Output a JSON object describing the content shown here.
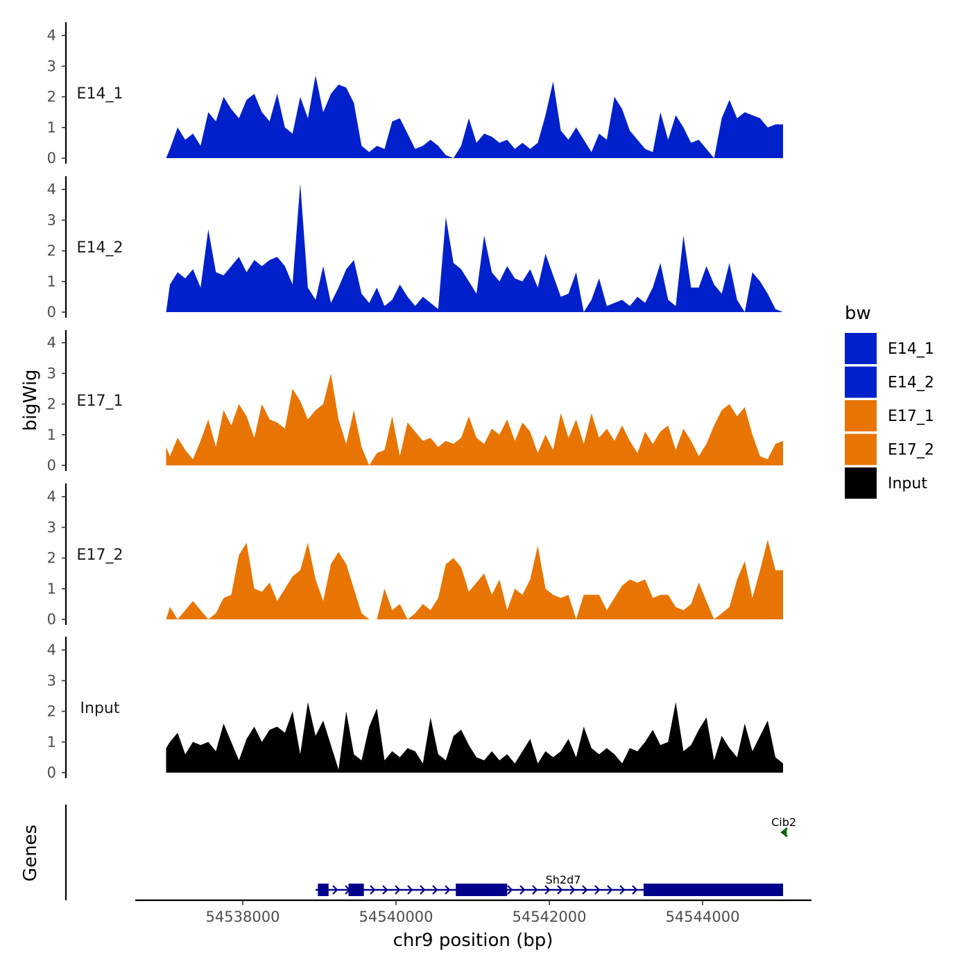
{
  "chart_data": {
    "type": "area",
    "title": "",
    "xlabel": "chr9 position (bp)",
    "ylabel": "bigWig",
    "genes_label": "Genes",
    "xlim": [
      54536600,
      54545500
    ],
    "x_ticks": [
      54538000,
      54540000,
      54542000,
      54544000
    ],
    "x_tick_labels": [
      "54538000",
      "54540000",
      "54542000",
      "54544000"
    ],
    "ylim": [
      0,
      4.4
    ],
    "y_ticks": [
      0,
      1,
      2,
      3,
      4
    ],
    "y_tick_labels": [
      "0",
      "1",
      "2",
      "3",
      "4"
    ],
    "legend": {
      "title": "bw",
      "items": [
        {
          "label": "E14_1",
          "color": "#0020CC"
        },
        {
          "label": "E14_2",
          "color": "#0020CC"
        },
        {
          "label": "E17_1",
          "color": "#E87503"
        },
        {
          "label": "E17_2",
          "color": "#E87503"
        },
        {
          "label": "Input",
          "color": "#000000"
        }
      ]
    },
    "series": [
      {
        "name": "E14_1",
        "color": "#0020CC",
        "x": [
          54537000,
          54537050,
          54537150,
          54537250,
          54537350,
          54537450,
          54537550,
          54537650,
          54537750,
          54537850,
          54537950,
          54538050,
          54538150,
          54538250,
          54538350,
          54538450,
          54538550,
          54538650,
          54538750,
          54538850,
          54538950,
          54539050,
          54539150,
          54539250,
          54539350,
          54539450,
          54539550,
          54539650,
          54539750,
          54539850,
          54539950,
          54540050,
          54540150,
          54540250,
          54540350,
          54540450,
          54540550,
          54540650,
          54540750,
          54540850,
          54540950,
          54541050,
          54541150,
          54541250,
          54541350,
          54541450,
          54541550,
          54541650,
          54541750,
          54541850,
          54541950,
          54542050,
          54542150,
          54542250,
          54542350,
          54542450,
          54542550,
          54542650,
          54542750,
          54542850,
          54542950,
          54543050,
          54543150,
          54543250,
          54543350,
          54543450,
          54543550,
          54543650,
          54543750,
          54543850,
          54543950,
          54544050,
          54544150,
          54544250,
          54544350,
          54544450,
          54544550,
          54544650,
          54544750,
          54544850,
          54544950,
          54545050
        ],
        "y": [
          0,
          0.3,
          1.0,
          0.6,
          0.8,
          0.4,
          1.5,
          1.2,
          2.0,
          1.6,
          1.3,
          1.9,
          2.1,
          1.5,
          1.2,
          2.1,
          1.0,
          0.8,
          2.0,
          1.3,
          2.7,
          1.5,
          2.1,
          2.4,
          2.3,
          1.8,
          0.4,
          0.2,
          0.4,
          0.3,
          1.2,
          1.3,
          0.8,
          0.3,
          0.4,
          0.6,
          0.4,
          0.1,
          0,
          0.4,
          1.3,
          0.5,
          0.8,
          0.7,
          0.5,
          0.6,
          0.3,
          0.5,
          0.3,
          0.5,
          1.4,
          2.5,
          0.9,
          0.6,
          1.0,
          0.6,
          0.2,
          0.8,
          0.6,
          2.0,
          1.6,
          0.9,
          0.6,
          0.3,
          0.2,
          1.5,
          0.6,
          1.4,
          1.0,
          0.5,
          0.6,
          0.3,
          0,
          1.3,
          1.9,
          1.3,
          1.5,
          1.4,
          1.3,
          1.0,
          1.1,
          1.1
        ]
      },
      {
        "name": "E14_2",
        "color": "#0020CC",
        "x": [
          54537000,
          54537050,
          54537150,
          54537250,
          54537350,
          54537450,
          54537550,
          54537650,
          54537750,
          54537850,
          54537950,
          54538050,
          54538150,
          54538250,
          54538350,
          54538450,
          54538550,
          54538650,
          54538750,
          54538850,
          54538950,
          54539050,
          54539150,
          54539250,
          54539350,
          54539450,
          54539550,
          54539650,
          54539750,
          54539850,
          54539950,
          54540050,
          54540150,
          54540250,
          54540350,
          54540450,
          54540550,
          54540650,
          54540750,
          54540850,
          54540950,
          54541050,
          54541150,
          54541250,
          54541350,
          54541450,
          54541550,
          54541650,
          54541750,
          54541850,
          54541950,
          54542050,
          54542150,
          54542250,
          54542350,
          54542450,
          54542550,
          54542650,
          54542750,
          54542850,
          54542950,
          54543050,
          54543150,
          54543250,
          54543350,
          54543450,
          54543550,
          54543650,
          54543750,
          54543850,
          54543950,
          54544050,
          54544150,
          54544250,
          54544350,
          54544450,
          54544550,
          54544650,
          54544750,
          54544850,
          54544950,
          54545050
        ],
        "y": [
          0,
          0.9,
          1.3,
          1.1,
          1.4,
          0.8,
          2.7,
          1.3,
          1.2,
          1.5,
          1.8,
          1.3,
          1.7,
          1.5,
          1.7,
          1.8,
          1.5,
          0.9,
          4.2,
          0.8,
          0.4,
          1.5,
          0.3,
          0.8,
          1.4,
          1.7,
          0.6,
          0.3,
          0.8,
          0.2,
          0.4,
          0.9,
          0.5,
          0.2,
          0.5,
          0.3,
          0.1,
          3.1,
          1.6,
          1.4,
          1.0,
          0.6,
          2.5,
          1.3,
          1.0,
          1.5,
          1.1,
          1.0,
          1.4,
          0.8,
          1.9,
          1.2,
          0.5,
          0.6,
          1.3,
          0,
          0.4,
          1.1,
          0.2,
          0.3,
          0.4,
          0.2,
          0.5,
          0.3,
          0.8,
          1.6,
          0.4,
          0.2,
          2.5,
          0.8,
          0.8,
          1.5,
          0.9,
          0.6,
          1.6,
          0.4,
          0,
          1.3,
          1.0,
          0.6,
          0.1,
          0
        ]
      },
      {
        "name": "E17_1",
        "color": "#E87503",
        "x": [
          54537000,
          54537050,
          54537150,
          54537250,
          54537350,
          54537450,
          54537550,
          54537650,
          54537750,
          54537850,
          54537950,
          54538050,
          54538150,
          54538250,
          54538350,
          54538450,
          54538550,
          54538650,
          54538750,
          54538850,
          54538950,
          54539050,
          54539150,
          54539250,
          54539350,
          54539450,
          54539550,
          54539650,
          54539750,
          54539850,
          54539950,
          54540050,
          54540150,
          54540250,
          54540350,
          54540450,
          54540550,
          54540650,
          54540750,
          54540850,
          54540950,
          54541050,
          54541150,
          54541250,
          54541350,
          54541450,
          54541550,
          54541650,
          54541750,
          54541850,
          54541950,
          54542050,
          54542150,
          54542250,
          54542350,
          54542450,
          54542550,
          54542650,
          54542750,
          54542850,
          54542950,
          54543050,
          54543150,
          54543250,
          54543350,
          54543450,
          54543550,
          54543650,
          54543750,
          54543850,
          54543950,
          54544050,
          54544150,
          54544250,
          54544350,
          54544450,
          54544550,
          54544650,
          54544750,
          54544850,
          54544950,
          54545050
        ],
        "y": [
          0.6,
          0.3,
          0.9,
          0.5,
          0.2,
          0.8,
          1.5,
          0.6,
          1.8,
          1.3,
          2.0,
          1.6,
          0.9,
          2.0,
          1.5,
          1.4,
          1.2,
          2.5,
          2.1,
          1.5,
          1.8,
          2.0,
          3.0,
          1.5,
          0.7,
          1.8,
          0.6,
          0,
          0.4,
          0.5,
          1.6,
          0.3,
          1.4,
          1.1,
          0.8,
          0.9,
          0.6,
          0.8,
          0.7,
          0.9,
          1.6,
          0.9,
          0.7,
          1.2,
          1.0,
          1.5,
          0.8,
          1.4,
          1.1,
          0.4,
          1.0,
          0.5,
          1.7,
          0.9,
          1.5,
          0.7,
          1.7,
          0.9,
          1.2,
          0.8,
          1.3,
          0.8,
          0.4,
          1.1,
          0.7,
          1.1,
          1.3,
          0.5,
          1.2,
          0.8,
          0.3,
          0.7,
          1.3,
          1.8,
          2.0,
          1.6,
          1.9,
          1.0,
          0.3,
          0.2,
          0.7,
          0.8
        ]
      },
      {
        "name": "E17_2",
        "color": "#E87503",
        "x": [
          54537000,
          54537050,
          54537150,
          54537250,
          54537350,
          54537450,
          54537550,
          54537650,
          54537750,
          54537850,
          54537950,
          54538050,
          54538150,
          54538250,
          54538350,
          54538450,
          54538550,
          54538650,
          54538750,
          54538850,
          54538950,
          54539050,
          54539150,
          54539250,
          54539350,
          54539450,
          54539550,
          54539650,
          54539750,
          54539850,
          54539950,
          54540050,
          54540150,
          54540250,
          54540350,
          54540450,
          54540550,
          54540650,
          54540750,
          54540850,
          54540950,
          54541050,
          54541150,
          54541250,
          54541350,
          54541450,
          54541550,
          54541650,
          54541750,
          54541850,
          54541950,
          54542050,
          54542150,
          54542250,
          54542350,
          54542450,
          54542550,
          54542650,
          54542750,
          54542850,
          54542950,
          54543050,
          54543150,
          54543250,
          54543350,
          54543450,
          54543550,
          54543650,
          54543750,
          54543850,
          54543950,
          54544050,
          54544150,
          54544250,
          54544350,
          54544450,
          54544550,
          54544650,
          54544750,
          54544850,
          54544950,
          54545050
        ],
        "y": [
          0,
          0.4,
          0,
          0.3,
          0.6,
          0.3,
          0,
          0.2,
          0.7,
          0.8,
          2.1,
          2.5,
          1.0,
          0.9,
          1.2,
          0.6,
          1.0,
          1.4,
          1.6,
          2.5,
          1.3,
          0.6,
          1.8,
          2.2,
          1.8,
          1.0,
          0.2,
          0,
          0,
          1.0,
          0.3,
          0.5,
          0,
          0.2,
          0.5,
          0.3,
          0.7,
          1.8,
          2.0,
          1.7,
          0.9,
          1.2,
          1.5,
          0.8,
          1.3,
          0.3,
          1.0,
          0.8,
          1.3,
          2.4,
          1.0,
          0.8,
          0.7,
          0.8,
          0,
          0.8,
          0.8,
          0.8,
          0.3,
          0.7,
          1.1,
          1.3,
          1.2,
          1.3,
          0.7,
          0.8,
          0.8,
          0.4,
          0.3,
          0.5,
          1.2,
          0.6,
          0,
          0.2,
          0.4,
          1.3,
          1.9,
          0.7,
          1.6,
          2.6,
          1.6,
          1.6
        ]
      },
      {
        "name": "Input",
        "color": "#000000",
        "x": [
          54537000,
          54537050,
          54537150,
          54537250,
          54537350,
          54537450,
          54537550,
          54537650,
          54537750,
          54537850,
          54537950,
          54538050,
          54538150,
          54538250,
          54538350,
          54538450,
          54538550,
          54538650,
          54538750,
          54538850,
          54538950,
          54539050,
          54539150,
          54539250,
          54539350,
          54539450,
          54539550,
          54539650,
          54539750,
          54539850,
          54539950,
          54540050,
          54540150,
          54540250,
          54540350,
          54540450,
          54540550,
          54540650,
          54540750,
          54540850,
          54540950,
          54541050,
          54541150,
          54541250,
          54541350,
          54541450,
          54541550,
          54541650,
          54541750,
          54541850,
          54541950,
          54542050,
          54542150,
          54542250,
          54542350,
          54542450,
          54542550,
          54542650,
          54542750,
          54542850,
          54542950,
          54543050,
          54543150,
          54543250,
          54543350,
          54543450,
          54543550,
          54543650,
          54543750,
          54543850,
          54543950,
          54544050,
          54544150,
          54544250,
          54544350,
          54544450,
          54544550,
          54544650,
          54544750,
          54544850,
          54544950,
          54545050
        ],
        "y": [
          0.8,
          1.0,
          1.3,
          0.6,
          1.0,
          0.9,
          1.0,
          0.7,
          1.6,
          1.0,
          0.4,
          1.1,
          1.5,
          1.0,
          1.4,
          1.5,
          1.3,
          2.0,
          0.6,
          2.3,
          1.2,
          1.7,
          0.9,
          0.1,
          2.0,
          0.6,
          0.4,
          1.5,
          2.1,
          0.4,
          0.7,
          0.5,
          0.8,
          0.7,
          0.3,
          1.8,
          0.6,
          0.4,
          1.2,
          1.4,
          0.9,
          0.5,
          0.4,
          0.7,
          0.4,
          0.6,
          0.3,
          0.7,
          1.1,
          0.3,
          0.7,
          0.5,
          0.7,
          1.1,
          0.5,
          1.5,
          0.8,
          0.6,
          0.8,
          0.6,
          0.3,
          0.8,
          0.7,
          1.0,
          1.4,
          0.9,
          1.0,
          2.3,
          0.7,
          0.9,
          1.4,
          1.8,
          0.4,
          1.2,
          0.8,
          0.5,
          1.6,
          0.7,
          1.2,
          1.7,
          0.5,
          0.3
        ]
      }
    ],
    "genes": [
      {
        "name": "Sh2d7",
        "color": "#00008B",
        "strand": "+",
        "start": 54538950,
        "end": 54545050,
        "exons": [
          [
            54538980,
            54539120
          ],
          [
            54539380,
            54539580
          ],
          [
            54540780,
            54541450
          ],
          [
            54543230,
            54545050
          ]
        ]
      },
      {
        "name": "Cib2",
        "color": "#006400",
        "strand": "-",
        "start": 54544780,
        "end": 54545050,
        "exons": []
      }
    ]
  }
}
